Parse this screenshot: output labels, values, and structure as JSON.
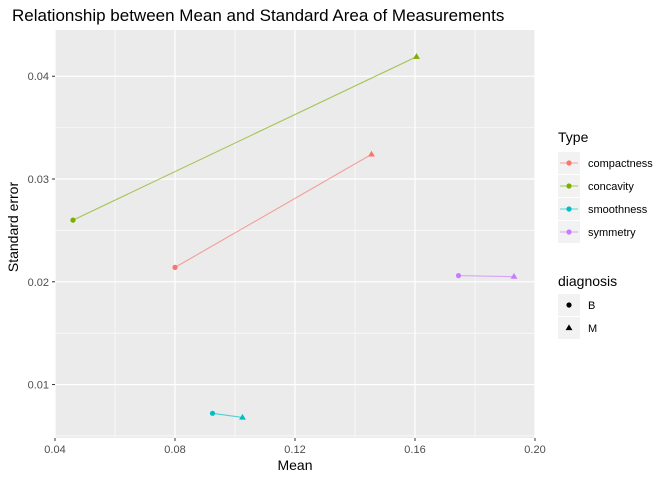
{
  "chart_data": {
    "type": "scatter",
    "title": "Relationship between Mean and Standard Area of Measurements",
    "xlabel": "Mean",
    "ylabel": "Standard error",
    "xlim": [
      0.04,
      0.2
    ],
    "ylim": [
      0.0048,
      0.0445
    ],
    "x_ticks": [
      0.04,
      0.08,
      0.12,
      0.16,
      0.2
    ],
    "x_tick_labels": [
      "0.04",
      "0.08",
      "0.12",
      "0.16",
      "0.20"
    ],
    "y_ticks": [
      0.01,
      0.02,
      0.03,
      0.04
    ],
    "y_tick_labels": [
      "0.01",
      "0.02",
      "0.03",
      "0.04"
    ],
    "grid": true,
    "legend_position": "right",
    "series": [
      {
        "name": "compactness",
        "color": "#F8766D",
        "points": [
          {
            "diagnosis": "B",
            "x": 0.08,
            "y": 0.0214
          },
          {
            "diagnosis": "M",
            "x": 0.1455,
            "y": 0.0324
          }
        ]
      },
      {
        "name": "concavity",
        "color": "#7CAE00",
        "points": [
          {
            "diagnosis": "B",
            "x": 0.046,
            "y": 0.026
          },
          {
            "diagnosis": "M",
            "x": 0.1605,
            "y": 0.0419
          }
        ]
      },
      {
        "name": "smoothness",
        "color": "#00BFC4",
        "points": [
          {
            "diagnosis": "B",
            "x": 0.0925,
            "y": 0.0072
          },
          {
            "diagnosis": "M",
            "x": 0.1025,
            "y": 0.0068
          }
        ]
      },
      {
        "name": "symmetry",
        "color": "#C77CFF",
        "points": [
          {
            "diagnosis": "B",
            "x": 0.1745,
            "y": 0.0206
          },
          {
            "diagnosis": "M",
            "x": 0.193,
            "y": 0.0205
          }
        ]
      }
    ],
    "legends": [
      {
        "title": "Type",
        "items": [
          "compactness",
          "concavity",
          "smoothness",
          "symmetry"
        ]
      },
      {
        "title": "diagnosis",
        "items": [
          {
            "label": "B",
            "shape": "circle"
          },
          {
            "label": "M",
            "shape": "triangle"
          }
        ]
      }
    ]
  }
}
